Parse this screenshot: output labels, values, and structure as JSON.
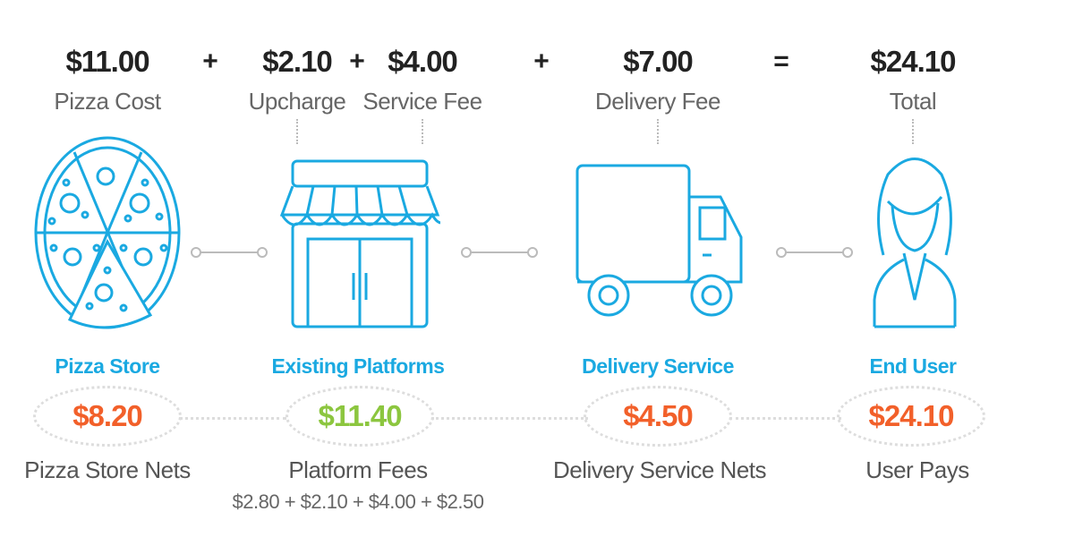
{
  "equation": {
    "terms": [
      {
        "value": "$11.00",
        "label": "Pizza Cost"
      },
      {
        "value": "$2.10",
        "label": "Upcharge"
      },
      {
        "value": "$4.00",
        "label": "Service Fee"
      },
      {
        "value": "$7.00",
        "label": "Delivery Fee"
      },
      {
        "value": "$24.10",
        "label": "Total"
      }
    ],
    "operators": [
      "+",
      "+",
      "+",
      "="
    ]
  },
  "parties": [
    {
      "name": "Pizza Store",
      "icon": "pizza-icon",
      "amount": "$8.20",
      "amount_color": "#f2602a",
      "label": "Pizza Store Nets"
    },
    {
      "name": "Existing Platforms",
      "icon": "storefront-icon",
      "amount": "$11.40",
      "amount_color": "#8cc63f",
      "label": "Platform Fees",
      "breakdown": "$2.80 + $2.10 + $4.00 + $2.50"
    },
    {
      "name": "Delivery Service",
      "icon": "delivery-truck-icon",
      "amount": "$4.50",
      "amount_color": "#f2602a",
      "label": "Delivery Service Nets"
    },
    {
      "name": "End User",
      "icon": "user-icon",
      "amount": "$24.10",
      "amount_color": "#f2602a",
      "label": "User Pays"
    }
  ],
  "colors": {
    "accent": "#1aa9e1",
    "text": "#222222",
    "muted": "#666666"
  }
}
